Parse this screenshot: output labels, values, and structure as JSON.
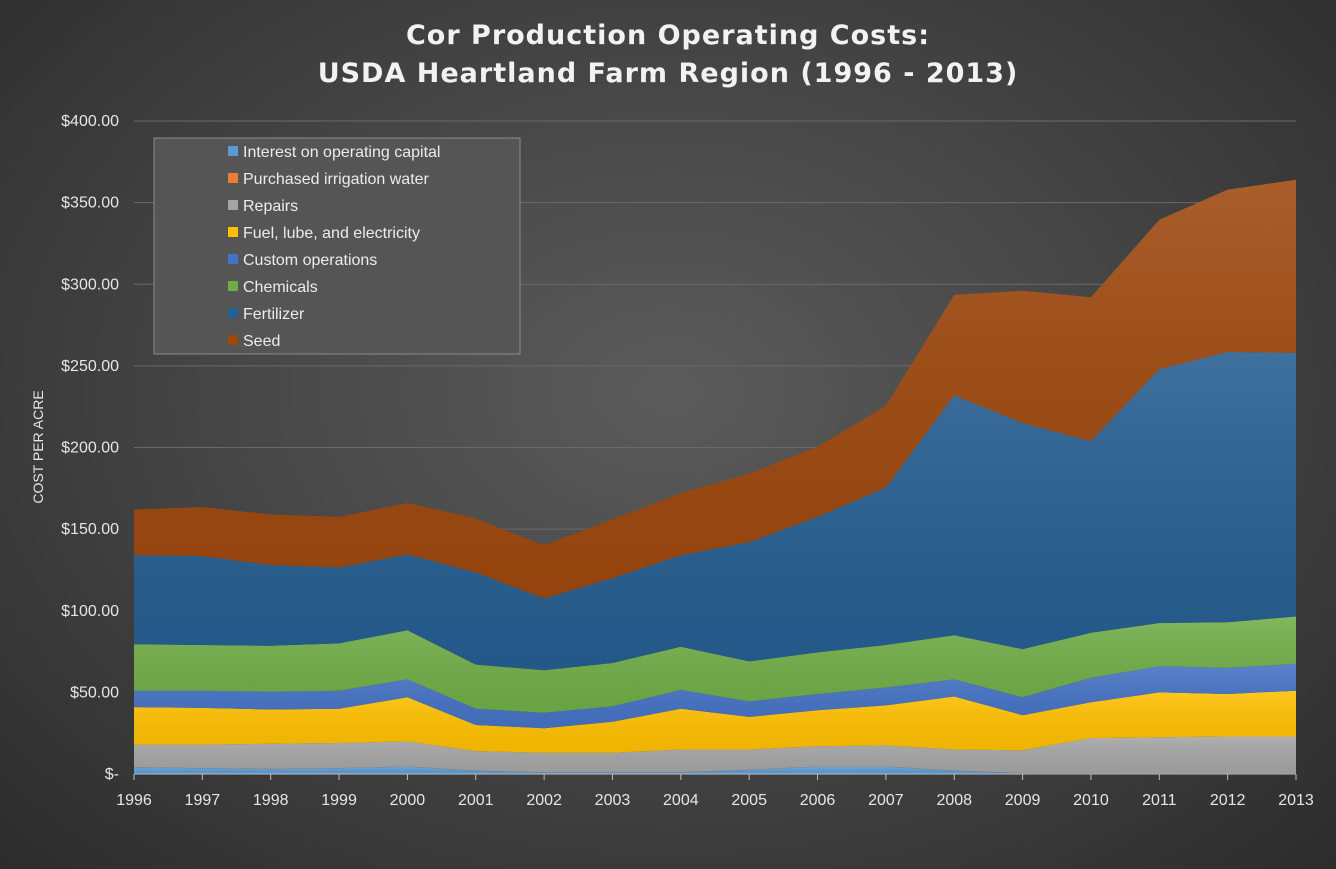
{
  "chart_data": {
    "type": "area",
    "stacked": true,
    "title": [
      "Cor Production Operating Costs:",
      "USDA Heartland Farm Region (1996 - 2013)"
    ],
    "xlabel": "",
    "ylabel": "COST PER ACRE",
    "x": [
      "1996",
      "1997",
      "1998",
      "1999",
      "2000",
      "2001",
      "2002",
      "2003",
      "2004",
      "2005",
      "2006",
      "2007",
      "2008",
      "2009",
      "2010",
      "2011",
      "2012",
      "2013"
    ],
    "ylim": [
      0,
      400
    ],
    "y_ticks": [
      {
        "value": 0,
        "label": "$-"
      },
      {
        "value": 50,
        "label": "$50.00"
      },
      {
        "value": 100,
        "label": "$100.00"
      },
      {
        "value": 150,
        "label": "$150.00"
      },
      {
        "value": 200,
        "label": "$200.00"
      },
      {
        "value": 250,
        "label": "$250.00"
      },
      {
        "value": 300,
        "label": "$300.00"
      },
      {
        "value": 350,
        "label": "$350.00"
      },
      {
        "value": 400,
        "label": "$400.00"
      }
    ],
    "grid": true,
    "legend_position": "top-left",
    "series": [
      {
        "name": "Interest on operating capital",
        "color": "#5b9bd5",
        "values": [
          4,
          3.5,
          3,
          3.5,
          4.5,
          2,
          1,
          1,
          1,
          2.5,
          4.5,
          4.5,
          2,
          0.5,
          0.3,
          0.3,
          0.3,
          0.3
        ]
      },
      {
        "name": "Purchased irrigation water",
        "color": "#ed7d31",
        "values": [
          0.1,
          0.1,
          0.1,
          0.1,
          0.1,
          0.1,
          0.1,
          0.1,
          0.1,
          0.1,
          0.1,
          0.1,
          0.1,
          0.1,
          0.1,
          0.1,
          0.1,
          0.1
        ]
      },
      {
        "name": "Repairs",
        "color": "#a5a5a5",
        "values": [
          13.9,
          14.4,
          15.4,
          15.4,
          15.4,
          11.9,
          11.9,
          11.9,
          13.9,
          12.4,
          12.4,
          12.9,
          12.9,
          13.9,
          21.6,
          22.1,
          22.6,
          22.6
        ]
      },
      {
        "name": "Fuel, lube, and electricity",
        "color": "#ffc000",
        "values": [
          23,
          22.5,
          21,
          21,
          27,
          16,
          15,
          19,
          25,
          20,
          22,
          24.5,
          32.5,
          21.5,
          22,
          27.5,
          26,
          28
        ]
      },
      {
        "name": "Custom operations",
        "color": "#4472c4",
        "values": [
          10,
          10.5,
          11,
          11,
          11,
          10,
          9.5,
          9.5,
          11.5,
          9.5,
          10,
          11,
          10.5,
          11,
          15,
          16,
          16,
          16.5
        ]
      },
      {
        "name": "Chemicals",
        "color": "#70ad47",
        "values": [
          28.5,
          28,
          28,
          29,
          30,
          27,
          26,
          26.5,
          26.5,
          24.5,
          25.5,
          26,
          27,
          29.5,
          27.5,
          26.5,
          28,
          29
        ]
      },
      {
        "name": "Fertilizer",
        "color": "#255e91",
        "values": [
          54.5,
          54.5,
          49.5,
          46.5,
          46.5,
          56.5,
          44,
          52,
          56,
          73,
          83,
          96.5,
          147,
          138.5,
          117.5,
          155.5,
          165.5,
          161.5
        ]
      },
      {
        "name": "Seed",
        "color": "#9e480e",
        "values": [
          28,
          30,
          31,
          31,
          31.5,
          33,
          32.5,
          36,
          38,
          42,
          43,
          50,
          61.5,
          81,
          88,
          91.5,
          99.5,
          106
        ]
      }
    ]
  }
}
